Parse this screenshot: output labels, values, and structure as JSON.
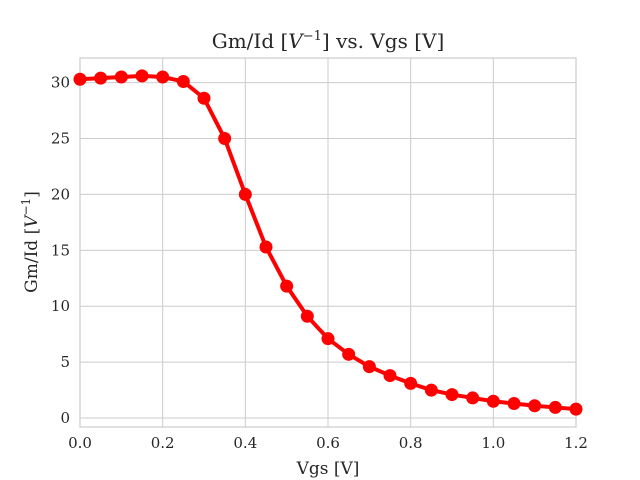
{
  "chart_data": {
    "type": "line",
    "title_main": "Gm/Id [",
    "title_math": "V",
    "title_sup": "−1",
    "title_tail": "] vs. Vgs [V]",
    "xlabel": "Vgs [V]",
    "ylabel_main": "Gm/Id [",
    "ylabel_math": "V",
    "ylabel_sup": "−1",
    "ylabel_tail": "]",
    "xlim": [
      0,
      1.2
    ],
    "ylim": [
      -0.8,
      32.2
    ],
    "xticks": [
      0.0,
      0.2,
      0.4,
      0.6,
      0.8,
      1.0,
      1.2
    ],
    "xtick_labels": [
      "0.0",
      "0.2",
      "0.4",
      "0.6",
      "0.8",
      "1.0",
      "1.2"
    ],
    "yticks": [
      0,
      5,
      10,
      15,
      20,
      25,
      30
    ],
    "ytick_labels": [
      "0",
      "5",
      "10",
      "15",
      "20",
      "25",
      "30"
    ],
    "grid": true,
    "color": "#ff0000",
    "series": [
      {
        "x": [
          0.0,
          0.05,
          0.1,
          0.15,
          0.2,
          0.25,
          0.3,
          0.35,
          0.4,
          0.45,
          0.5,
          0.55,
          0.6,
          0.65,
          0.7,
          0.75,
          0.8,
          0.85,
          0.9,
          0.95,
          1.0,
          1.05,
          1.1,
          1.15,
          1.2
        ],
        "y": [
          30.3,
          30.4,
          30.5,
          30.6,
          30.5,
          30.1,
          28.6,
          25.0,
          20.0,
          15.3,
          11.8,
          9.1,
          7.1,
          5.7,
          4.6,
          3.8,
          3.1,
          2.5,
          2.1,
          1.8,
          1.5,
          1.3,
          1.1,
          0.95,
          0.8
        ]
      }
    ]
  }
}
